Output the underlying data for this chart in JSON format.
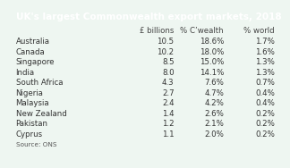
{
  "title": "UK's largest Commonwealth export markets, 2018",
  "col_headers": [
    "£ billions",
    "% C’wealth",
    "% world"
  ],
  "rows": [
    [
      "Australia",
      "10.5",
      "18.6%",
      "1.7%"
    ],
    [
      "Canada",
      "10.2",
      "18.0%",
      "1.6%"
    ],
    [
      "Singapore",
      "8.5",
      "15.0%",
      "1.3%"
    ],
    [
      "India",
      "8.0",
      "14.1%",
      "1.3%"
    ],
    [
      "South Africa",
      "4.3",
      "7.6%",
      "0.7%"
    ],
    [
      "Nigeria",
      "2.7",
      "4.7%",
      "0.4%"
    ],
    [
      "Malaysia",
      "2.4",
      "4.2%",
      "0.4%"
    ],
    [
      "New Zealand",
      "1.4",
      "2.6%",
      "0.2%"
    ],
    [
      "Pakistan",
      "1.2",
      "2.1%",
      "0.2%"
    ],
    [
      "Cyprus",
      "1.1",
      "2.0%",
      "0.2%"
    ]
  ],
  "source": "Source: ONS",
  "header_bg": "#3d7a5a",
  "header_text": "#ffffff",
  "col_header_bg": "#aed4c0",
  "col_header_text": "#444444",
  "row_odd_bg": "#deeee6",
  "row_even_bg": "#eef6f1",
  "text_color": "#333333",
  "source_text_color": "#555555",
  "title_fontsize": 7.5,
  "header_fontsize": 6.2,
  "cell_fontsize": 6.2,
  "source_fontsize": 5.2
}
